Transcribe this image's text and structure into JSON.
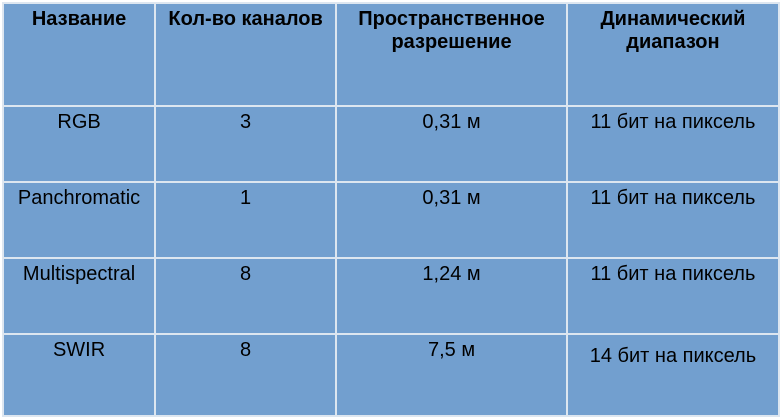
{
  "table": {
    "headers": [
      "Название",
      "Кол-во каналов",
      "Пространственное разрешение",
      "Динамический диапазон"
    ],
    "rows": [
      [
        "RGB",
        "3",
        "0,31 м",
        "11 бит на пиксель"
      ],
      [
        "Panchromatic",
        "1",
        "0,31 м",
        "11 бит на пиксель"
      ],
      [
        "Multispectral",
        "8",
        "1,24 м",
        "11 бит на пиксель"
      ],
      [
        "SWIR",
        "8",
        "7,5 м",
        "14 бит на пиксель"
      ]
    ]
  },
  "colors": {
    "cell_background": "#729fcf",
    "grid_lines": "#dde6f0"
  }
}
